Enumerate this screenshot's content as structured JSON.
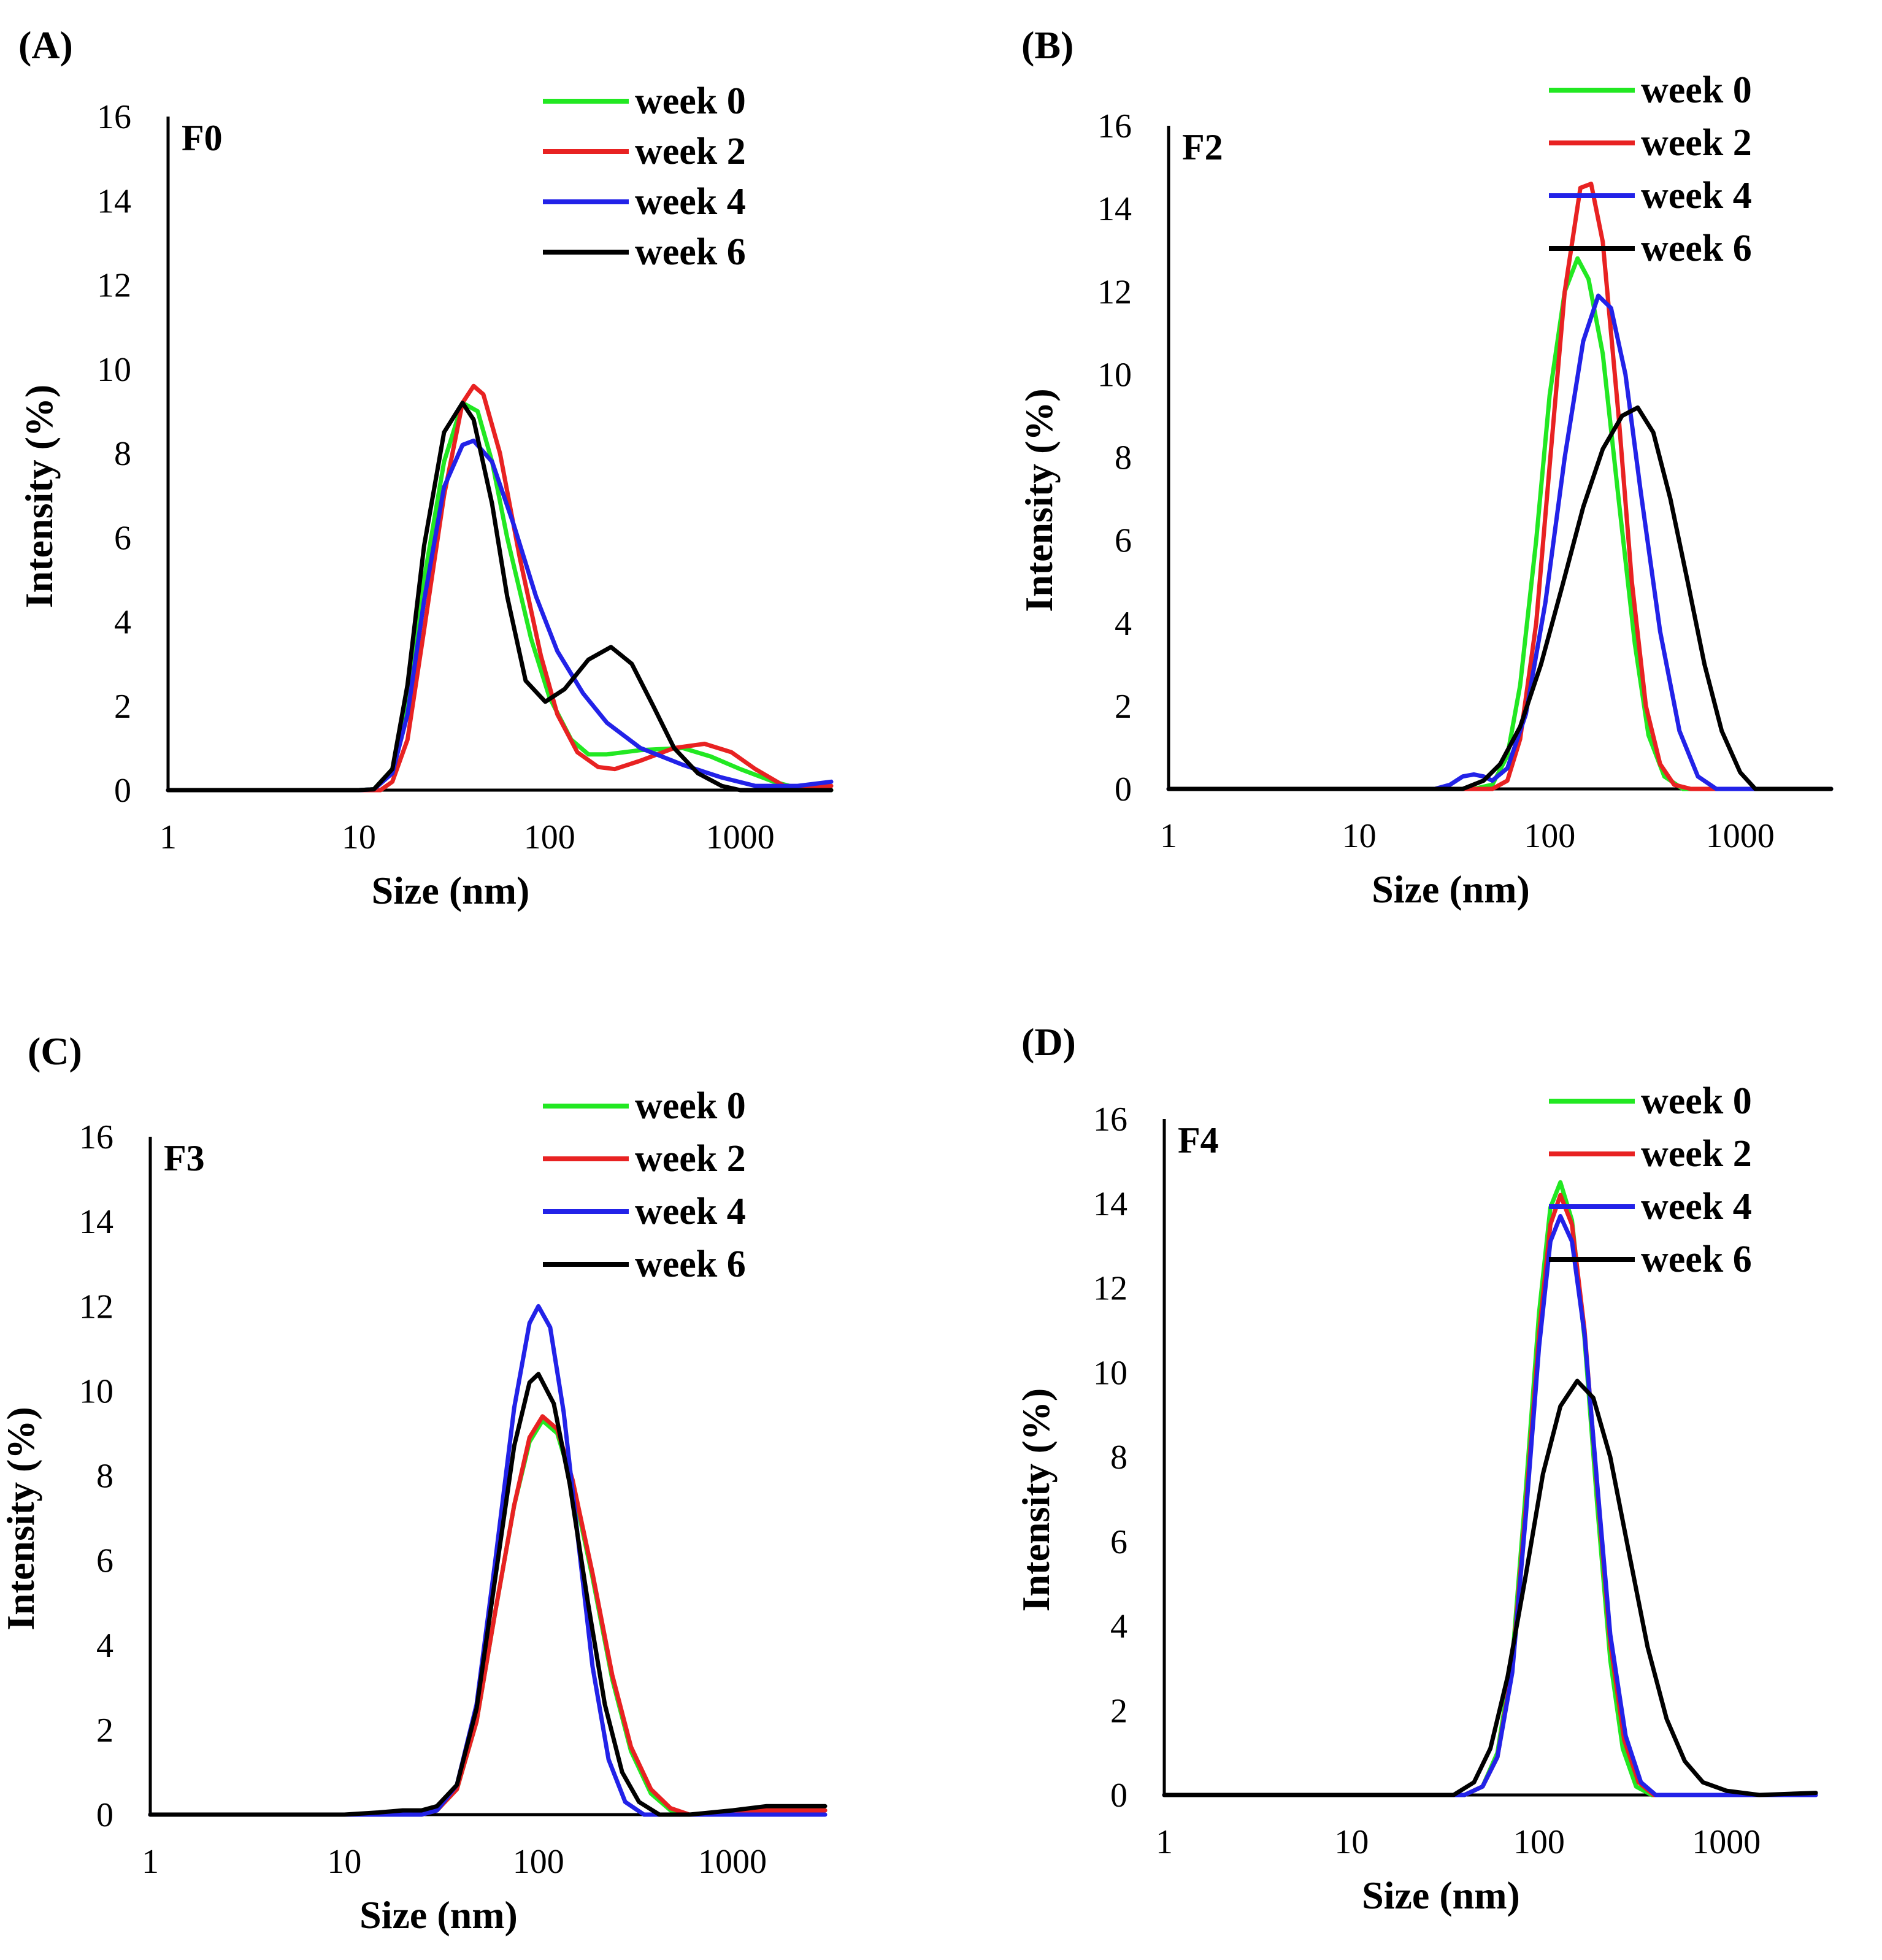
{
  "figure": {
    "panels": [
      "(A)",
      "(B)",
      "(C)",
      "(D)"
    ]
  },
  "chart_data": [
    {
      "panel_label": "(A)",
      "type": "line",
      "title": "F0",
      "xlabel": "Size (nm)",
      "ylabel": "Intensity (%)",
      "x_scale": "log",
      "xlim": [
        1,
        3000
      ],
      "ylim": [
        0,
        16
      ],
      "x_ticks": [
        1,
        10,
        100,
        1000
      ],
      "x_tick_labels": [
        "1",
        "10",
        "100",
        "1000"
      ],
      "y_ticks": [
        0,
        2,
        4,
        6,
        8,
        10,
        12,
        14,
        16
      ],
      "y_tick_labels": [
        "0",
        "2",
        "4",
        "6",
        "8",
        "10",
        "12",
        "14",
        "16"
      ],
      "legend_position": "top-right",
      "series": [
        {
          "name": "week 0",
          "color": "#22e822",
          "x": [
            1,
            10,
            12,
            15,
            18,
            22,
            28,
            35,
            42,
            50,
            60,
            80,
            100,
            130,
            160,
            200,
            300,
            500,
            700,
            1000,
            1500,
            2000,
            3000
          ],
          "y": [
            0,
            0,
            0.02,
            0.5,
            2.2,
            5.0,
            7.8,
            9.2,
            9.0,
            7.8,
            6.0,
            3.6,
            2.2,
            1.2,
            0.85,
            0.85,
            0.95,
            1.0,
            0.8,
            0.5,
            0.2,
            0.05,
            0
          ]
        },
        {
          "name": "week 2",
          "color": "#e82222",
          "x": [
            1,
            10,
            13,
            15,
            18,
            22,
            28,
            35,
            40,
            45,
            55,
            70,
            90,
            110,
            140,
            180,
            220,
            300,
            450,
            650,
            900,
            1200,
            1700,
            2200,
            3000
          ],
          "y": [
            0,
            0,
            0,
            0.2,
            1.2,
            3.8,
            7.0,
            9.2,
            9.6,
            9.4,
            8.0,
            5.5,
            3.2,
            1.8,
            0.9,
            0.55,
            0.5,
            0.7,
            1.0,
            1.1,
            0.9,
            0.5,
            0.1,
            0.05,
            0.1
          ]
        },
        {
          "name": "week 4",
          "color": "#2222e8",
          "x": [
            1,
            10,
            12,
            15,
            18,
            22,
            28,
            35,
            40,
            50,
            65,
            85,
            110,
            150,
            200,
            300,
            500,
            800,
            1200,
            2000,
            3000
          ],
          "y": [
            0,
            0,
            0.02,
            0.4,
            1.8,
            4.5,
            7.2,
            8.2,
            8.3,
            7.8,
            6.3,
            4.6,
            3.3,
            2.3,
            1.6,
            1.0,
            0.6,
            0.3,
            0.1,
            0.1,
            0.2
          ]
        },
        {
          "name": "week 6",
          "color": "#000000",
          "x": [
            1,
            10,
            12,
            15,
            18,
            22,
            28,
            35,
            40,
            50,
            60,
            75,
            95,
            120,
            160,
            210,
            270,
            350,
            450,
            600,
            800,
            1000,
            3000
          ],
          "y": [
            0,
            0,
            0.02,
            0.5,
            2.5,
            5.8,
            8.5,
            9.2,
            8.8,
            6.8,
            4.6,
            2.6,
            2.1,
            2.4,
            3.1,
            3.4,
            3.0,
            2.0,
            1.0,
            0.4,
            0.1,
            0,
            0
          ]
        }
      ]
    },
    {
      "panel_label": "(B)",
      "type": "line",
      "title": "F2",
      "xlabel": "Size (nm)",
      "ylabel": "Intensity (%)",
      "x_scale": "log",
      "xlim": [
        1,
        3000
      ],
      "ylim": [
        0,
        16
      ],
      "x_ticks": [
        1,
        10,
        100,
        1000
      ],
      "x_tick_labels": [
        "1",
        "10",
        "100",
        "1000"
      ],
      "y_ticks": [
        0,
        2,
        4,
        6,
        8,
        10,
        12,
        14,
        16
      ],
      "y_tick_labels": [
        "0",
        "2",
        "4",
        "6",
        "8",
        "10",
        "12",
        "14",
        "16"
      ],
      "legend_position": "top-right",
      "series": [
        {
          "name": "week 0",
          "color": "#22e822",
          "x": [
            1,
            40,
            50,
            60,
            70,
            85,
            100,
            120,
            140,
            160,
            190,
            230,
            280,
            330,
            400,
            500,
            3000
          ],
          "y": [
            0,
            0,
            0.1,
            0.8,
            2.5,
            6.0,
            9.5,
            12.0,
            12.8,
            12.3,
            10.5,
            7.0,
            3.5,
            1.3,
            0.3,
            0,
            0
          ]
        },
        {
          "name": "week 2",
          "color": "#e82222",
          "x": [
            1,
            50,
            60,
            70,
            85,
            100,
            120,
            145,
            165,
            190,
            230,
            270,
            320,
            380,
            450,
            550,
            3000
          ],
          "y": [
            0,
            0,
            0.2,
            1.2,
            4.0,
            7.8,
            12.0,
            14.5,
            14.6,
            13.2,
            9.0,
            5.0,
            2.0,
            0.6,
            0.1,
            0,
            0
          ]
        },
        {
          "name": "week 4",
          "color": "#2222e8",
          "x": [
            1,
            25,
            30,
            35,
            40,
            45,
            50,
            60,
            75,
            95,
            120,
            150,
            180,
            210,
            250,
            300,
            380,
            480,
            600,
            750,
            3000
          ],
          "y": [
            0,
            0,
            0.1,
            0.3,
            0.35,
            0.3,
            0.2,
            0.5,
            1.8,
            4.5,
            8.0,
            10.8,
            11.9,
            11.6,
            10.0,
            7.2,
            3.8,
            1.4,
            0.3,
            0,
            0
          ]
        },
        {
          "name": "week 6",
          "color": "#000000",
          "x": [
            1,
            35,
            45,
            55,
            70,
            90,
            115,
            150,
            190,
            240,
            290,
            350,
            430,
            530,
            650,
            800,
            1000,
            1200,
            3000
          ],
          "y": [
            0,
            0,
            0.2,
            0.6,
            1.5,
            3.0,
            4.8,
            6.8,
            8.2,
            9.0,
            9.2,
            8.6,
            7.0,
            5.0,
            3.0,
            1.4,
            0.4,
            0,
            0
          ]
        }
      ]
    },
    {
      "panel_label": "(C)",
      "type": "line",
      "title": "F3",
      "xlabel": "Size (nm)",
      "ylabel": "Intensity (%)",
      "x_scale": "log",
      "xlim": [
        1,
        3000
      ],
      "ylim": [
        0,
        16
      ],
      "x_ticks": [
        1,
        10,
        100,
        1000
      ],
      "x_tick_labels": [
        "1",
        "10",
        "100",
        "1000"
      ],
      "y_ticks": [
        0,
        2,
        4,
        6,
        8,
        10,
        12,
        14,
        16
      ],
      "y_tick_labels": [
        "0",
        "2",
        "4",
        "6",
        "8",
        "10",
        "12",
        "14",
        "16"
      ],
      "legend_position": "top-right",
      "series": [
        {
          "name": "week 0",
          "color": "#22e822",
          "x": [
            1,
            25,
            30,
            38,
            48,
            60,
            75,
            90,
            105,
            125,
            150,
            190,
            240,
            300,
            380,
            480,
            600,
            800,
            1200,
            3000
          ],
          "y": [
            0,
            0,
            0.1,
            0.6,
            2.2,
            4.8,
            7.3,
            8.8,
            9.3,
            9.0,
            7.8,
            5.6,
            3.2,
            1.5,
            0.5,
            0.1,
            0,
            0,
            0.1,
            0.1
          ]
        },
        {
          "name": "week 2",
          "color": "#e82222",
          "x": [
            1,
            25,
            30,
            38,
            48,
            60,
            75,
            90,
            105,
            125,
            150,
            190,
            240,
            300,
            380,
            480,
            600,
            800,
            1200,
            3000
          ],
          "y": [
            0,
            0,
            0.1,
            0.6,
            2.2,
            4.8,
            7.3,
            8.9,
            9.4,
            9.1,
            7.9,
            5.7,
            3.3,
            1.6,
            0.6,
            0.15,
            0,
            0,
            0.1,
            0.1
          ]
        },
        {
          "name": "week 4",
          "color": "#2222e8",
          "x": [
            1,
            25,
            30,
            38,
            48,
            60,
            75,
            90,
            100,
            115,
            135,
            160,
            190,
            230,
            280,
            350,
            3000
          ],
          "y": [
            0,
            0,
            0.1,
            0.7,
            2.6,
            6.0,
            9.6,
            11.6,
            12.0,
            11.5,
            9.5,
            6.5,
            3.5,
            1.3,
            0.3,
            0,
            0
          ]
        },
        {
          "name": "week 6",
          "color": "#000000",
          "x": [
            1,
            10,
            15,
            20,
            25,
            30,
            38,
            48,
            60,
            75,
            90,
            100,
            120,
            145,
            180,
            220,
            270,
            330,
            420,
            600,
            1000,
            1500,
            3000
          ],
          "y": [
            0,
            0,
            0.05,
            0.1,
            0.1,
            0.2,
            0.7,
            2.5,
            5.6,
            8.7,
            10.2,
            10.4,
            9.7,
            7.8,
            5.0,
            2.6,
            1.0,
            0.3,
            0,
            0,
            0.1,
            0.2,
            0.2
          ]
        }
      ]
    },
    {
      "panel_label": "(D)",
      "type": "line",
      "title": "F4",
      "xlabel": "Size (nm)",
      "ylabel": "Intensity (%)",
      "x_scale": "log",
      "xlim": [
        1,
        3000
      ],
      "ylim": [
        0,
        16
      ],
      "x_ticks": [
        1,
        10,
        100,
        1000
      ],
      "x_tick_labels": [
        "1",
        "10",
        "100",
        "1000"
      ],
      "y_ticks": [
        0,
        2,
        4,
        6,
        8,
        10,
        12,
        14,
        16
      ],
      "y_tick_labels": [
        "0",
        "2",
        "4",
        "6",
        "8",
        "10",
        "12",
        "14",
        "16"
      ],
      "legend_position": "top-right",
      "series": [
        {
          "name": "week 0",
          "color": "#22e822",
          "x": [
            1,
            40,
            50,
            60,
            72,
            85,
            100,
            115,
            130,
            150,
            175,
            205,
            240,
            280,
            330,
            400,
            3000
          ],
          "y": [
            0,
            0,
            0.2,
            1.0,
            3.2,
            7.2,
            11.4,
            13.9,
            14.5,
            13.6,
            10.8,
            6.8,
            3.2,
            1.1,
            0.2,
            0,
            0
          ]
        },
        {
          "name": "week 2",
          "color": "#e82222",
          "x": [
            1,
            40,
            50,
            60,
            72,
            85,
            100,
            115,
            130,
            150,
            175,
            205,
            240,
            285,
            340,
            410,
            3000
          ],
          "y": [
            0,
            0,
            0.2,
            0.9,
            3.0,
            6.8,
            10.9,
            13.5,
            14.2,
            13.5,
            11.0,
            7.2,
            3.6,
            1.3,
            0.3,
            0,
            0
          ]
        },
        {
          "name": "week 4",
          "color": "#2222e8",
          "x": [
            1,
            40,
            50,
            60,
            72,
            85,
            100,
            115,
            130,
            150,
            175,
            205,
            240,
            290,
            350,
            420,
            3000
          ],
          "y": [
            0,
            0,
            0.2,
            0.9,
            2.9,
            6.6,
            10.6,
            13.1,
            13.7,
            13.1,
            10.9,
            7.3,
            3.8,
            1.4,
            0.3,
            0,
            0
          ]
        },
        {
          "name": "week 6",
          "color": "#000000",
          "x": [
            1,
            35,
            45,
            55,
            68,
            85,
            105,
            130,
            160,
            195,
            240,
            300,
            380,
            480,
            600,
            750,
            1000,
            1500,
            3000
          ],
          "y": [
            0,
            0,
            0.3,
            1.1,
            2.8,
            5.2,
            7.6,
            9.2,
            9.8,
            9.4,
            8.0,
            5.8,
            3.5,
            1.8,
            0.8,
            0.3,
            0.1,
            0,
            0.05
          ]
        }
      ]
    }
  ]
}
